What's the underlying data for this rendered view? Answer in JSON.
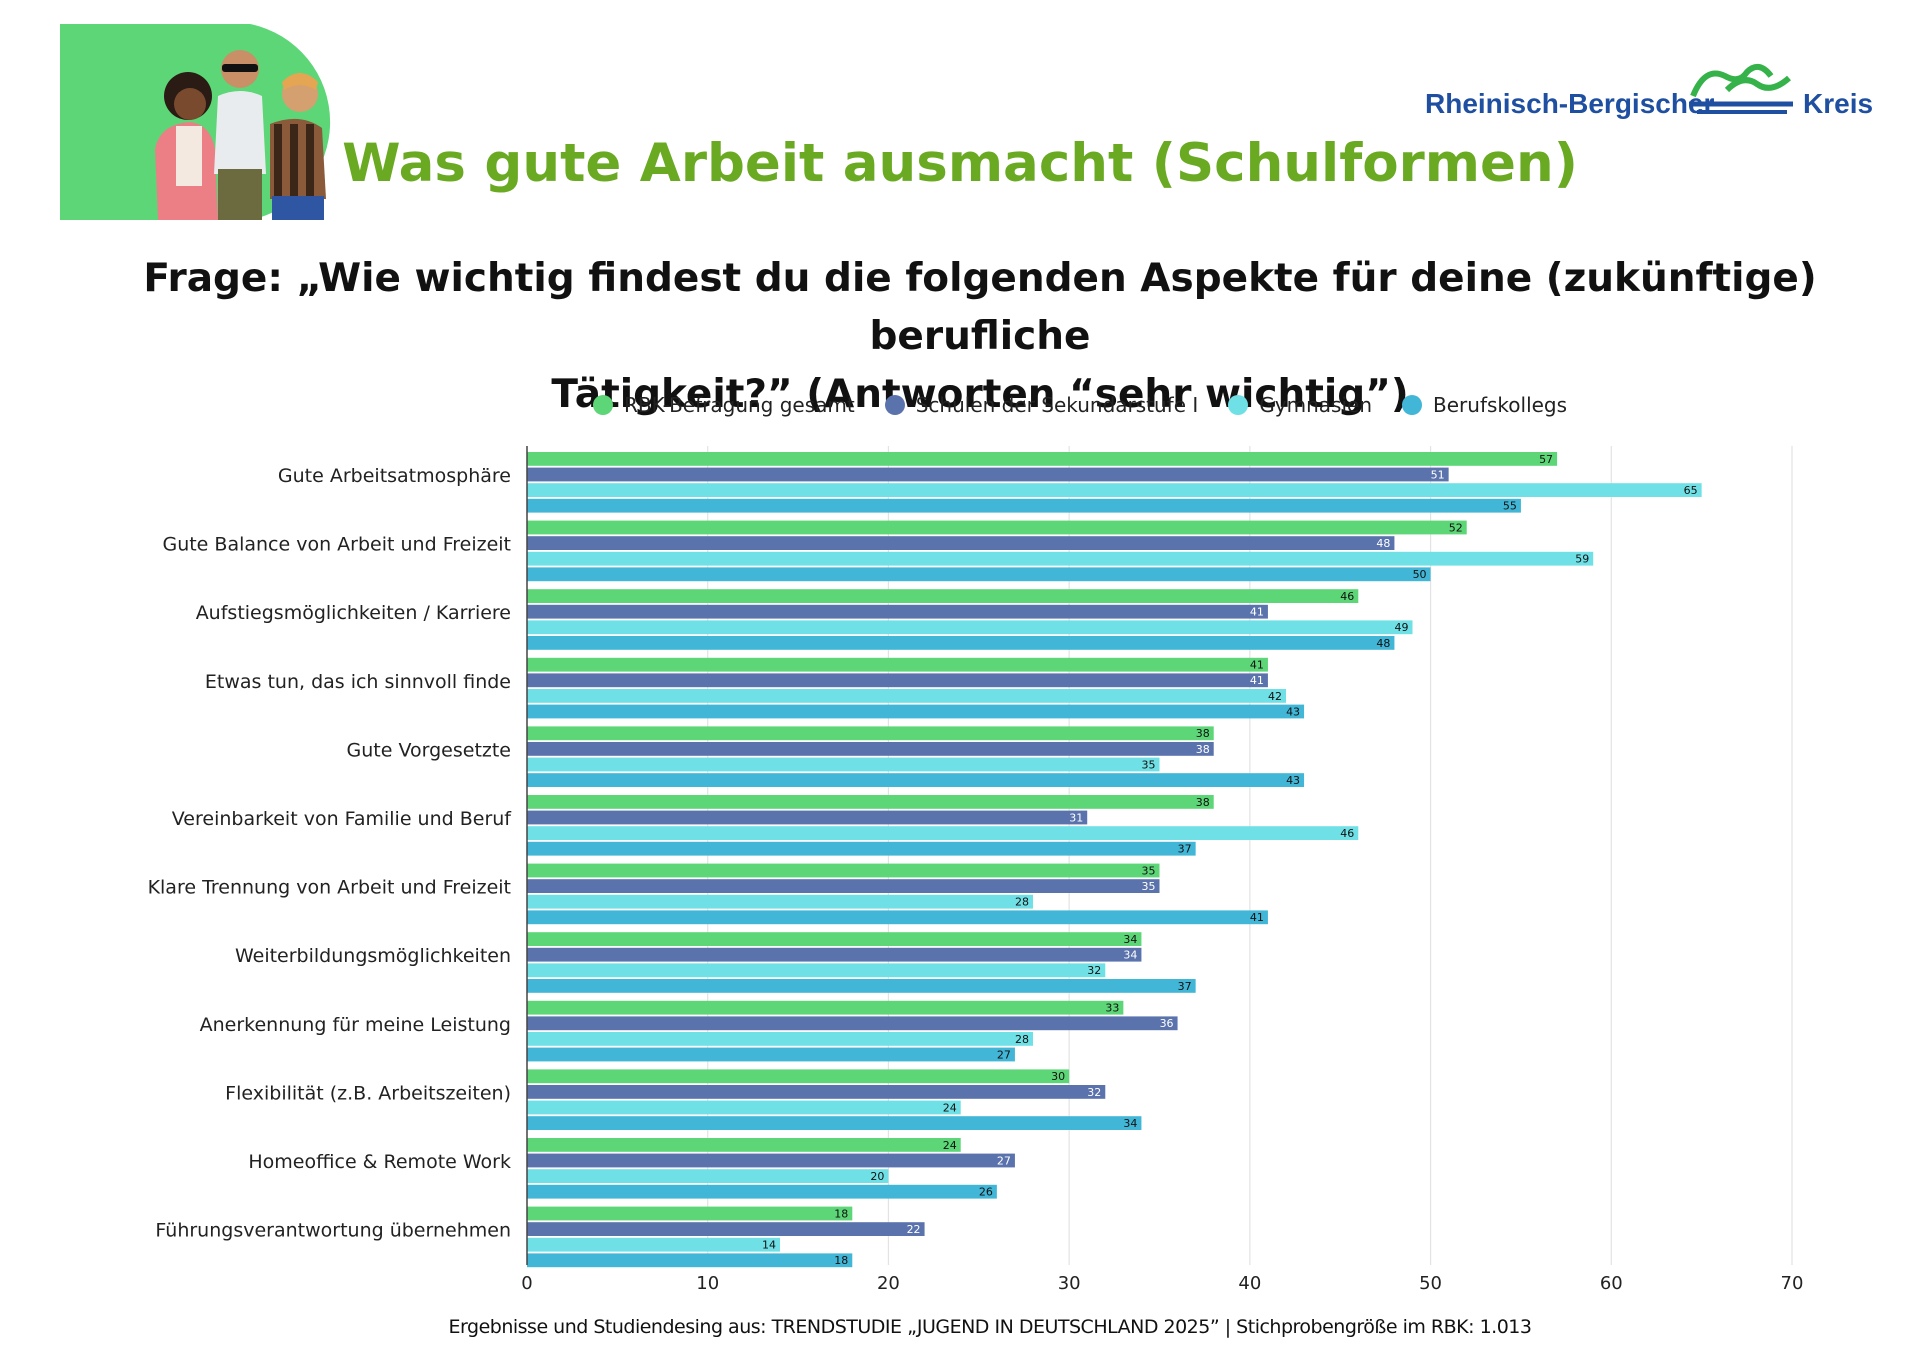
{
  "header": {
    "title": "Was gute Arbeit ausmacht (Schulformen)",
    "question_line1": "Frage: „Wie wichtig findest du die folgenden Aspekte für deine (zukünftige) berufliche",
    "question_line2": "Tätigkeit?” (Antworten “sehr wichtig”)",
    "logo_left": "Rheinisch-Bergischer",
    "logo_right": "Kreis"
  },
  "colors": {
    "title": "#6aaa23",
    "brand_blue": "#1f4fa0",
    "hero_bg": "#5cd676"
  },
  "chart_data": {
    "type": "bar",
    "orientation": "horizontal",
    "categories": [
      "Gute Arbeitsatmosphäre",
      "Gute Balance von Arbeit und Freizeit",
      "Aufstiegsmöglichkeiten / Karriere",
      "Etwas tun, das ich sinnvoll finde",
      "Gute Vorgesetzte",
      "Vereinbarkeit von Familie und Beruf",
      "Klare Trennung von Arbeit und Freizeit",
      "Weiterbildungsmöglichkeiten",
      "Anerkennung für meine Leistung",
      "Flexibilität (z.B. Arbeitszeiten)",
      "Homeoffice & Remote Work",
      "Führungsverantwortung übernehmen"
    ],
    "series": [
      {
        "name": "RBK-Befragung gesamt",
        "color": "#5cd676",
        "label_color": "#111111",
        "values": [
          57,
          52,
          46,
          41,
          38,
          38,
          35,
          34,
          33,
          30,
          24,
          18
        ]
      },
      {
        "name": "Schulen der Sekundarstufe I",
        "color": "#5b73ad",
        "label_color": "#ffffff",
        "values": [
          51,
          48,
          41,
          41,
          38,
          31,
          35,
          34,
          36,
          32,
          27,
          22
        ]
      },
      {
        "name": "Gymnasien",
        "color": "#6fe0e6",
        "label_color": "#111111",
        "values": [
          65,
          59,
          49,
          42,
          35,
          46,
          28,
          32,
          28,
          24,
          20,
          14
        ]
      },
      {
        "name": "Berufskollegs",
        "color": "#41b6d6",
        "label_color": "#111111",
        "values": [
          55,
          50,
          48,
          43,
          43,
          37,
          41,
          37,
          27,
          34,
          26,
          18
        ]
      }
    ],
    "xlim": [
      0,
      70
    ],
    "xticks": [
      "0",
      "10",
      "20",
      "30",
      "40",
      "50",
      "60",
      "70"
    ],
    "grid": true,
    "legend_position": "top"
  },
  "footer": {
    "source": "Ergebnisse und Studiendesing aus: TRENDSTUDIE „JUGEND IN DEUTSCHLAND 2025” | Stichprobengröße im RBK:  1.013"
  }
}
